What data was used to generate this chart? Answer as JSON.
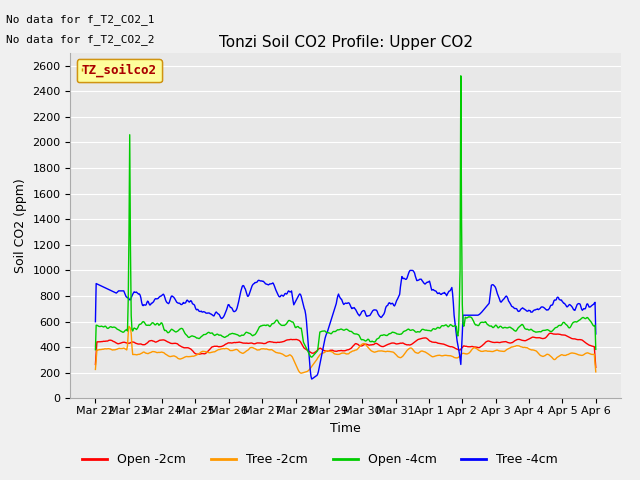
{
  "title": "Tonzi Soil CO2 Profile: Upper CO2",
  "xlabel": "Time",
  "ylabel": "Soil CO2 (ppm)",
  "ylim": [
    0,
    2700
  ],
  "yticks": [
    0,
    200,
    400,
    600,
    800,
    1000,
    1200,
    1400,
    1600,
    1800,
    2000,
    2200,
    2400,
    2600
  ],
  "legend_labels": [
    "Open -2cm",
    "Tree -2cm",
    "Open -4cm",
    "Tree -4cm"
  ],
  "legend_colors": [
    "#ff0000",
    "#ff9900",
    "#00cc00",
    "#0000ff"
  ],
  "text_annotations": [
    "No data for f_T2_CO2_1",
    "No data for f_T2_CO2_2"
  ],
  "legend_box_label": "TZ_soilco2",
  "legend_box_facecolor": "#ffff99",
  "legend_box_edgecolor": "#cc8800",
  "legend_box_text_color": "#aa0000",
  "plot_bg_color": "#e8e8e8",
  "fig_bg_color": "#f0f0f0",
  "grid_color": "#ffffff",
  "title_fontsize": 11,
  "axis_label_fontsize": 9,
  "tick_fontsize": 8,
  "annot_fontsize": 8,
  "n_points": 672,
  "day_labels": [
    "Mar 22",
    "Mar 23",
    "Mar 24",
    "Mar 25",
    "Mar 26",
    "Mar 27",
    "Mar 28",
    "Mar 29",
    "Mar 30",
    "Mar 31",
    "Apr 1",
    "Apr 2",
    "Apr 3",
    "Apr 4",
    "Apr 5",
    "Apr 6"
  ]
}
